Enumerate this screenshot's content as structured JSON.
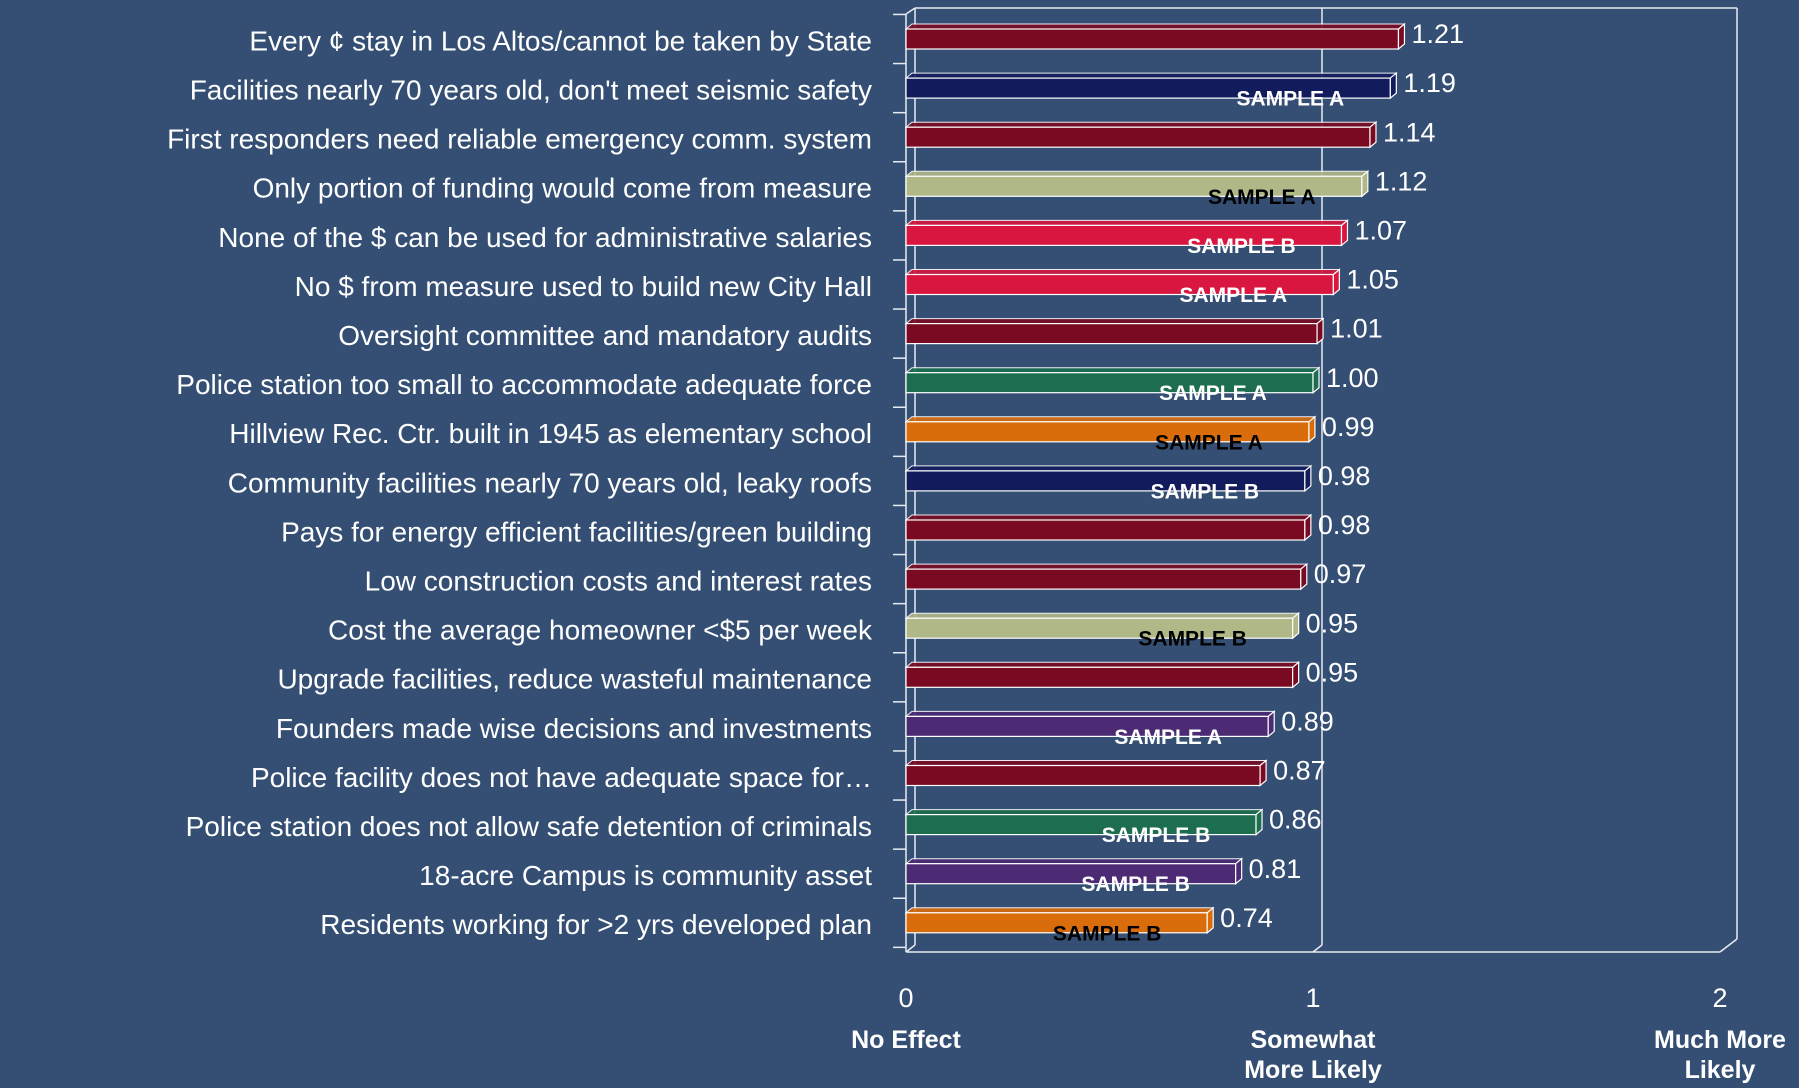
{
  "chart_data": {
    "type": "bar",
    "orientation": "horizontal",
    "categories": [
      "Every ¢ stay in Los Altos/cannot be taken by State",
      "Facilities nearly 70 years old, don't meet seismic safety",
      "First responders need reliable emergency comm. system",
      "Only portion of funding would come from measure",
      "None of the $ can be used for administrative salaries",
      "No $ from measure used to build new City Hall",
      "Oversight committee and mandatory audits",
      "Police station too small to accommodate adequate force",
      "Hillview Rec. Ctr. built in 1945 as elementary school",
      "Community facilities nearly 70 years old, leaky roofs",
      "Pays for energy efficient facilities/green building",
      "Low construction costs and interest rates",
      "Cost the average homeowner <$5 per week",
      "Upgrade facilities, reduce wasteful maintenance",
      "Founders made wise decisions and investments",
      "Police facility does not have adequate space for…",
      "Police station does not allow safe detention of criminals",
      "18-acre Campus is community asset",
      "Residents working for >2 yrs developed plan"
    ],
    "values": [
      1.21,
      1.19,
      1.14,
      1.12,
      1.07,
      1.05,
      1.01,
      1.0,
      0.99,
      0.98,
      0.98,
      0.97,
      0.95,
      0.95,
      0.89,
      0.87,
      0.86,
      0.81,
      0.74
    ],
    "value_labels": [
      "1.21",
      "1.19",
      "1.14",
      "1.12",
      "1.07",
      "1.05",
      "1.01",
      "1.00",
      "0.99",
      "0.98",
      "0.98",
      "0.97",
      "0.95",
      "0.95",
      "0.89",
      "0.87",
      "0.86",
      "0.81",
      "0.74"
    ],
    "colors": [
      "#7a0a22",
      "#121c5c",
      "#7a0a22",
      "#b1b887",
      "#d8163f",
      "#d8163f",
      "#7a0a22",
      "#1d6e4e",
      "#d96d0c",
      "#121c5c",
      "#7a0a22",
      "#7a0a22",
      "#b1b887",
      "#7a0a22",
      "#4c2a74",
      "#7a0a22",
      "#1d6e4e",
      "#4c2a74",
      "#d96d0c"
    ],
    "annotations": [
      null,
      "SAMPLE A",
      null,
      "SAMPLE A",
      "SAMPLE B",
      "SAMPLE A",
      null,
      "SAMPLE A",
      "SAMPLE A",
      "SAMPLE B",
      null,
      null,
      "SAMPLE B",
      null,
      "SAMPLE A",
      null,
      "SAMPLE B",
      "SAMPLE B",
      "SAMPLE B"
    ],
    "annotation_colors": [
      null,
      "#ffffff",
      null,
      "#000000",
      "#ffffff",
      "#ffffff",
      null,
      "#ffffff",
      "#000000",
      "#ffffff",
      null,
      null,
      "#000000",
      null,
      "#ffffff",
      null,
      "#ffffff",
      "#ffffff",
      "#000000"
    ],
    "xlim": [
      0,
      2
    ],
    "xticks": [
      0,
      1,
      2
    ],
    "xtick_descriptions": [
      "No Effect",
      "Somewhat More Likely",
      "Much More Likely"
    ],
    "grid": true
  }
}
